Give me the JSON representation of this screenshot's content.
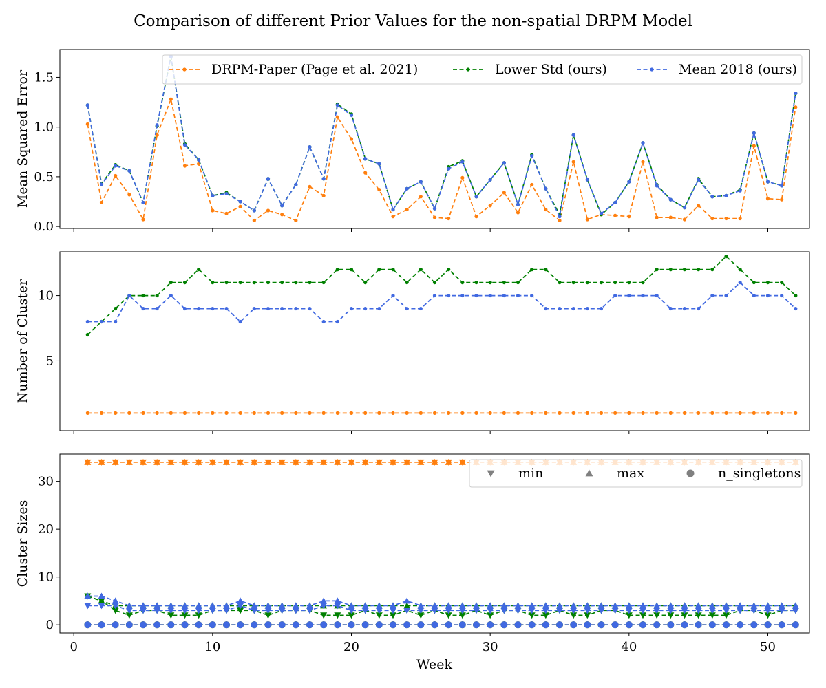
{
  "figure": {
    "title": "Comparison of different Prior Values for the non-spatial DRPM Model",
    "xlabel": "Week"
  },
  "chart_data": [
    {
      "type": "line",
      "ylabel": "Mean Squared Error",
      "xlim": [
        -1,
        53
      ],
      "ylim": [
        -0.02,
        1.78
      ],
      "yticks": [
        0.0,
        0.5,
        1.0,
        1.5
      ],
      "ytick_labels": [
        "0.0",
        "0.5",
        "1.0",
        "1.5"
      ],
      "legend_position": "top-right",
      "series": [
        {
          "name": "DRPM-Paper (Page et al. 2021)",
          "color": "#ff7f0e",
          "values": [
            1.03,
            0.24,
            0.51,
            0.32,
            0.07,
            0.92,
            1.28,
            0.61,
            0.63,
            0.16,
            0.13,
            0.2,
            0.06,
            0.16,
            0.12,
            0.06,
            0.4,
            0.31,
            1.1,
            0.88,
            0.54,
            0.37,
            0.1,
            0.17,
            0.3,
            0.09,
            0.08,
            0.49,
            0.1,
            0.21,
            0.34,
            0.14,
            0.42,
            0.17,
            0.06,
            0.65,
            0.07,
            0.12,
            0.11,
            0.1,
            0.65,
            0.09,
            0.09,
            0.07,
            0.21,
            0.08,
            0.08,
            0.08,
            0.81,
            0.28,
            0.27,
            1.2
          ]
        },
        {
          "name": "Lower Std (ours)",
          "color": "#008000",
          "values": [
            1.22,
            0.43,
            0.62,
            0.56,
            0.24,
            1.01,
            1.71,
            0.83,
            0.67,
            0.31,
            0.34,
            0.25,
            0.16,
            0.48,
            0.21,
            0.42,
            0.8,
            0.48,
            1.23,
            1.13,
            0.68,
            0.63,
            0.17,
            0.38,
            0.45,
            0.18,
            0.6,
            0.66,
            0.3,
            0.47,
            0.64,
            0.22,
            0.72,
            0.38,
            0.12,
            0.92,
            0.47,
            0.12,
            0.24,
            0.45,
            0.84,
            0.42,
            0.27,
            0.19,
            0.48,
            0.3,
            0.31,
            0.37,
            0.94,
            0.45,
            0.41,
            1.34
          ]
        },
        {
          "name": "Mean 2018 (ours)",
          "color": "#4169e1",
          "values": [
            1.22,
            0.42,
            0.61,
            0.56,
            0.24,
            1.02,
            1.71,
            0.82,
            0.67,
            0.31,
            0.33,
            0.25,
            0.16,
            0.48,
            0.21,
            0.42,
            0.8,
            0.48,
            1.22,
            1.12,
            0.68,
            0.63,
            0.17,
            0.38,
            0.45,
            0.18,
            0.58,
            0.65,
            0.3,
            0.47,
            0.64,
            0.22,
            0.71,
            0.38,
            0.1,
            0.92,
            0.47,
            0.13,
            0.24,
            0.45,
            0.84,
            0.41,
            0.27,
            0.19,
            0.47,
            0.3,
            0.31,
            0.36,
            0.94,
            0.45,
            0.41,
            1.34
          ]
        }
      ]
    },
    {
      "type": "line",
      "ylabel": "Number of Cluster",
      "xlim": [
        -1,
        53
      ],
      "ylim": [
        -0.35,
        13.35
      ],
      "yticks": [
        5,
        10
      ],
      "ytick_labels": [
        "5",
        "10"
      ],
      "series": [
        {
          "name": "DRPM-Paper (Page et al. 2021)",
          "color": "#ff7f0e",
          "values": [
            1,
            1,
            1,
            1,
            1,
            1,
            1,
            1,
            1,
            1,
            1,
            1,
            1,
            1,
            1,
            1,
            1,
            1,
            1,
            1,
            1,
            1,
            1,
            1,
            1,
            1,
            1,
            1,
            1,
            1,
            1,
            1,
            1,
            1,
            1,
            1,
            1,
            1,
            1,
            1,
            1,
            1,
            1,
            1,
            1,
            1,
            1,
            1,
            1,
            1,
            1,
            1
          ]
        },
        {
          "name": "Lower Std (ours)",
          "color": "#008000",
          "values": [
            7,
            8,
            9,
            10,
            10,
            10,
            11,
            11,
            12,
            11,
            11,
            11,
            11,
            11,
            11,
            11,
            11,
            11,
            12,
            12,
            11,
            12,
            12,
            11,
            12,
            11,
            12,
            11,
            11,
            11,
            11,
            11,
            12,
            12,
            11,
            11,
            11,
            11,
            11,
            11,
            11,
            12,
            12,
            12,
            12,
            12,
            13,
            12,
            11,
            11,
            11,
            10
          ]
        },
        {
          "name": "Mean 2018 (ours)",
          "color": "#4169e1",
          "values": [
            8,
            8,
            8,
            10,
            9,
            9,
            10,
            9,
            9,
            9,
            9,
            8,
            9,
            9,
            9,
            9,
            9,
            8,
            8,
            9,
            9,
            9,
            10,
            9,
            9,
            10,
            10,
            10,
            10,
            10,
            10,
            10,
            10,
            9,
            9,
            9,
            9,
            9,
            10,
            10,
            10,
            10,
            9,
            9,
            9,
            10,
            10,
            11,
            10,
            10,
            10,
            9
          ]
        }
      ]
    },
    {
      "type": "line",
      "ylabel": "Cluster Sizes",
      "xlim": [
        -1,
        53
      ],
      "ylim": [
        -1.7,
        35.7
      ],
      "yticks": [
        0,
        10,
        20,
        30
      ],
      "ytick_labels": [
        "0",
        "10",
        "20",
        "30"
      ],
      "legend_position": "top-right",
      "marker_legend": [
        {
          "label": "min",
          "marker": "triangle-down"
        },
        {
          "label": "max",
          "marker": "triangle-up"
        },
        {
          "label": "n_singletons",
          "marker": "circle"
        }
      ],
      "series": [
        {
          "model": "DRPM-Paper (Page et al. 2021)",
          "stat": "min",
          "color": "#ff7f0e",
          "values": [
            34,
            34,
            34,
            34,
            34,
            34,
            34,
            34,
            34,
            34,
            34,
            34,
            34,
            34,
            34,
            34,
            34,
            34,
            34,
            34,
            34,
            34,
            34,
            34,
            34,
            34,
            34,
            34,
            34,
            34,
            34,
            34,
            34,
            34,
            34,
            34,
            34,
            34,
            34,
            34,
            34,
            34,
            34,
            34,
            34,
            34,
            34,
            34,
            34,
            34,
            34,
            34
          ]
        },
        {
          "model": "DRPM-Paper (Page et al. 2021)",
          "stat": "max",
          "color": "#ff7f0e",
          "values": [
            34,
            34,
            34,
            34,
            34,
            34,
            34,
            34,
            34,
            34,
            34,
            34,
            34,
            34,
            34,
            34,
            34,
            34,
            34,
            34,
            34,
            34,
            34,
            34,
            34,
            34,
            34,
            34,
            34,
            34,
            34,
            34,
            34,
            34,
            34,
            34,
            34,
            34,
            34,
            34,
            34,
            34,
            34,
            34,
            34,
            34,
            34,
            34,
            34,
            34,
            34,
            34
          ]
        },
        {
          "model": "DRPM-Paper (Page et al. 2021)",
          "stat": "n_singletons",
          "color": "#ff7f0e",
          "values": [
            0,
            0,
            0,
            0,
            0,
            0,
            0,
            0,
            0,
            0,
            0,
            0,
            0,
            0,
            0,
            0,
            0,
            0,
            0,
            0,
            0,
            0,
            0,
            0,
            0,
            0,
            0,
            0,
            0,
            0,
            0,
            0,
            0,
            0,
            0,
            0,
            0,
            0,
            0,
            0,
            0,
            0,
            0,
            0,
            0,
            0,
            0,
            0,
            0,
            0,
            0,
            0
          ]
        },
        {
          "model": "Lower Std (ours)",
          "stat": "min",
          "color": "#008000",
          "values": [
            6,
            5,
            3,
            2,
            3,
            3,
            2,
            2,
            2,
            3,
            3,
            3,
            3,
            2,
            3,
            3,
            3,
            2,
            2,
            2,
            3,
            2,
            2,
            3,
            2,
            3,
            2,
            2,
            3,
            2,
            3,
            3,
            2,
            2,
            3,
            2,
            2,
            3,
            3,
            2,
            2,
            2,
            2,
            2,
            2,
            2,
            2,
            3,
            3,
            2,
            3,
            3
          ]
        },
        {
          "model": "Lower Std (ours)",
          "stat": "max",
          "color": "#008000",
          "values": [
            6,
            5,
            4,
            4,
            4,
            4,
            4,
            4,
            4,
            4,
            4,
            4,
            4,
            4,
            4,
            4,
            4,
            4,
            4,
            4,
            4,
            4,
            4,
            4,
            4,
            4,
            4,
            4,
            4,
            4,
            4,
            4,
            4,
            4,
            4,
            4,
            4,
            4,
            4,
            4,
            4,
            4,
            4,
            4,
            4,
            4,
            4,
            4,
            4,
            4,
            4,
            4
          ]
        },
        {
          "model": "Lower Std (ours)",
          "stat": "n_singletons",
          "color": "#008000",
          "values": [
            0,
            0,
            0,
            0,
            0,
            0,
            0,
            0,
            0,
            0,
            0,
            0,
            0,
            0,
            0,
            0,
            0,
            0,
            0,
            0,
            0,
            0,
            0,
            0,
            0,
            0,
            0,
            0,
            0,
            0,
            0,
            0,
            0,
            0,
            0,
            0,
            0,
            0,
            0,
            0,
            0,
            0,
            0,
            0,
            0,
            0,
            0,
            0,
            0,
            0,
            0,
            0
          ]
        },
        {
          "model": "Mean 2018 (ours)",
          "stat": "min",
          "color": "#4169e1",
          "values": [
            4,
            4,
            4,
            3,
            3,
            3,
            3,
            3,
            3,
            3,
            3,
            4,
            3,
            3,
            3,
            3,
            3,
            4,
            4,
            3,
            3,
            3,
            3,
            3,
            3,
            3,
            3,
            3,
            3,
            3,
            3,
            3,
            3,
            3,
            3,
            3,
            3,
            3,
            3,
            3,
            3,
            3,
            3,
            3,
            3,
            3,
            3,
            3,
            3,
            3,
            3,
            3
          ]
        },
        {
          "model": "Mean 2018 (ours)",
          "stat": "max",
          "color": "#4169e1",
          "values": [
            6,
            6,
            5,
            4,
            4,
            4,
            4,
            4,
            4,
            4,
            4,
            5,
            4,
            4,
            4,
            4,
            4,
            5,
            5,
            4,
            4,
            4,
            4,
            5,
            4,
            4,
            4,
            4,
            4,
            4,
            4,
            4,
            4,
            4,
            4,
            4,
            4,
            4,
            4,
            4,
            4,
            4,
            4,
            4,
            4,
            4,
            4,
            4,
            4,
            4,
            4,
            4
          ]
        },
        {
          "model": "Mean 2018 (ours)",
          "stat": "n_singletons",
          "color": "#4169e1",
          "values": [
            0,
            0,
            0,
            0,
            0,
            0,
            0,
            0,
            0,
            0,
            0,
            0,
            0,
            0,
            0,
            0,
            0,
            0,
            0,
            0,
            0,
            0,
            0,
            0,
            0,
            0,
            0,
            0,
            0,
            0,
            0,
            0,
            0,
            0,
            0,
            0,
            0,
            0,
            0,
            0,
            0,
            0,
            0,
            0,
            0,
            0,
            0,
            0,
            0,
            0,
            0,
            0
          ]
        }
      ]
    }
  ],
  "x_axis": {
    "weeks": [
      1,
      2,
      3,
      4,
      5,
      6,
      7,
      8,
      9,
      10,
      11,
      12,
      13,
      14,
      15,
      16,
      17,
      18,
      19,
      20,
      21,
      22,
      23,
      24,
      25,
      26,
      27,
      28,
      29,
      30,
      31,
      32,
      33,
      34,
      35,
      36,
      37,
      38,
      39,
      40,
      41,
      42,
      43,
      44,
      45,
      46,
      47,
      48,
      49,
      50,
      51,
      52
    ],
    "ticks": [
      0,
      10,
      20,
      30,
      40,
      50
    ],
    "tick_labels": [
      "0",
      "10",
      "20",
      "30",
      "40",
      "50"
    ]
  }
}
